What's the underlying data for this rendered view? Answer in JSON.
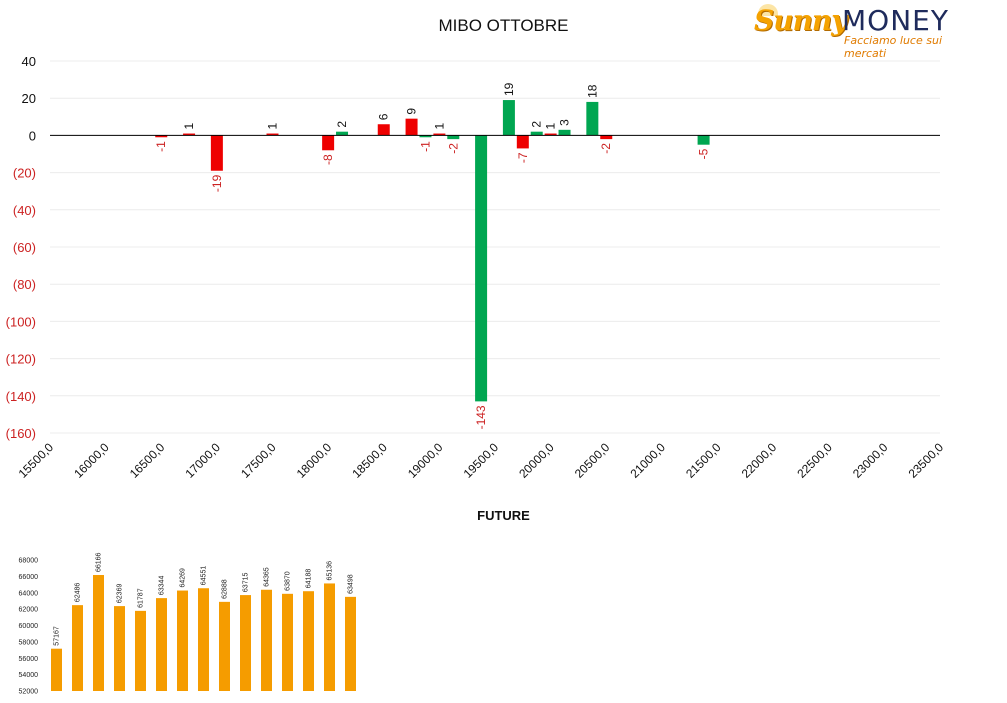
{
  "header": {
    "title": "MIBO OTTOBRE",
    "logo_brand_a": "Sunny",
    "logo_brand_b": "MONEY",
    "logo_tagline": "Facciamo luce sui mercati"
  },
  "colors": {
    "positive": "#00a651",
    "negative": "#ee0000",
    "negative_label": "#cc2222",
    "future_bar": "#f59c00",
    "axis": "#000000",
    "grid": "#ececec"
  },
  "chart_data": [
    {
      "type": "bar",
      "title": "MIBO OTTOBRE",
      "xlabel": "",
      "ylabel": "",
      "categories": [
        "15500,0",
        "16000,0",
        "16500,0",
        "17000,0",
        "17500,0",
        "18000,0",
        "18500,0",
        "19000,0",
        "19500,0",
        "20000,0",
        "20500,0",
        "21000,0",
        "21500,0",
        "22000,0",
        "22500,0",
        "23000,0",
        "23500,0"
      ],
      "ylim": [
        -160,
        40
      ],
      "yticks": [
        40,
        20,
        0,
        -20,
        -40,
        -60,
        -80,
        -100,
        -120,
        -140,
        -160
      ],
      "ytick_labels": [
        "40",
        "20",
        "0",
        "(20)",
        "(40)",
        "(60)",
        "(80)",
        "(100)",
        "(120)",
        "(140)",
        "(160)"
      ],
      "grid": true,
      "series": [
        {
          "color": "red",
          "points": [
            {
              "x": 16500,
              "y": -1
            },
            {
              "x": 16750,
              "y": 1
            },
            {
              "x": 17000,
              "y": -19
            },
            {
              "x": 17500,
              "y": 1
            },
            {
              "x": 18000,
              "y": -8
            },
            {
              "x": 18500,
              "y": 6
            },
            {
              "x": 18750,
              "y": 9
            },
            {
              "x": 19000,
              "y": 1
            },
            {
              "x": 19750,
              "y": -7
            },
            {
              "x": 20000,
              "y": 1
            },
            {
              "x": 20500,
              "y": -2
            }
          ]
        },
        {
          "color": "green",
          "points": [
            {
              "x": 18125,
              "y": 2
            },
            {
              "x": 18875,
              "y": -1
            },
            {
              "x": 19125,
              "y": -2
            },
            {
              "x": 19375,
              "y": -143
            },
            {
              "x": 19625,
              "y": 19
            },
            {
              "x": 19875,
              "y": 2
            },
            {
              "x": 20125,
              "y": 3
            },
            {
              "x": 20375,
              "y": 18
            },
            {
              "x": 21375,
              "y": -5
            }
          ]
        }
      ]
    },
    {
      "type": "bar",
      "title": "FUTURE",
      "xlabel": "",
      "ylabel": "",
      "ylim": [
        52000,
        68000
      ],
      "yticks": [
        52000,
        54000,
        56000,
        58000,
        60000,
        62000,
        64000,
        66000,
        68000
      ],
      "grid": false,
      "values": [
        57167,
        62486,
        66166,
        62369,
        61787,
        63344,
        64269,
        64551,
        62888,
        63715,
        64365,
        63870,
        64188,
        65136,
        63498
      ]
    }
  ]
}
